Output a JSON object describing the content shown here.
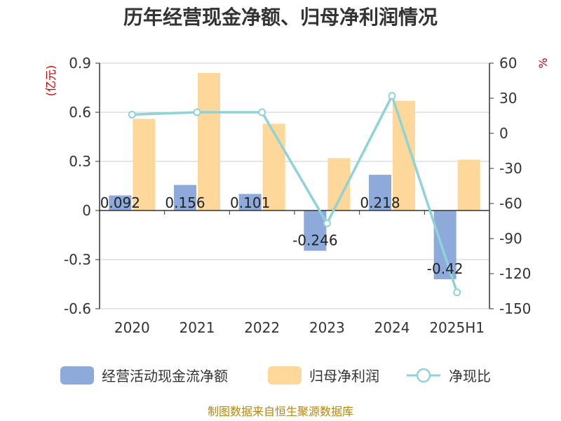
{
  "header": {
    "title": "历年经营现金净额、归母净利润情况"
  },
  "axes": {
    "left_unit": "(亿元)",
    "right_unit": "%",
    "left_ticks": [
      "0.9",
      "0.6",
      "0.3",
      "0",
      "-0.3",
      "-0.6"
    ],
    "right_ticks": [
      "60",
      "30",
      "0",
      "-30",
      "-60",
      "-90",
      "-120",
      "-150"
    ]
  },
  "legend": {
    "items": [
      {
        "label": "经营活动现金流净额",
        "color": "#8eaadb",
        "kind": "bar"
      },
      {
        "label": "归母净利润",
        "color": "#fdd89a",
        "kind": "bar"
      },
      {
        "label": "净现比",
        "color": "#8fd3d8",
        "kind": "line"
      }
    ]
  },
  "footer": {
    "source": "制图数据来自恒生聚源数据库"
  },
  "chart_data": {
    "type": "bar",
    "categories": [
      "2020",
      "2021",
      "2022",
      "2023",
      "2024",
      "2025H1"
    ],
    "series": [
      {
        "name": "经营活动现金流净额",
        "axis": "left",
        "type": "bar",
        "color": "#8eaadb",
        "values": [
          0.092,
          0.156,
          0.101,
          -0.246,
          0.218,
          -0.42
        ],
        "labels": [
          "0.092",
          "0.156",
          "0.101",
          "-0.246",
          "0.218",
          "-0.42"
        ]
      },
      {
        "name": "归母净利润",
        "axis": "left",
        "type": "bar",
        "color": "#fdd89a",
        "values": [
          0.56,
          0.84,
          0.53,
          0.32,
          0.67,
          0.31
        ]
      },
      {
        "name": "净现比",
        "axis": "right",
        "type": "line",
        "color": "#8fd3d8",
        "values": [
          16,
          18,
          18,
          -77,
          32,
          -136
        ]
      }
    ],
    "ylim_left": [
      -0.6,
      0.9
    ],
    "ylim_right": [
      -150,
      60
    ],
    "grid": true,
    "legend_position": "bottom"
  }
}
